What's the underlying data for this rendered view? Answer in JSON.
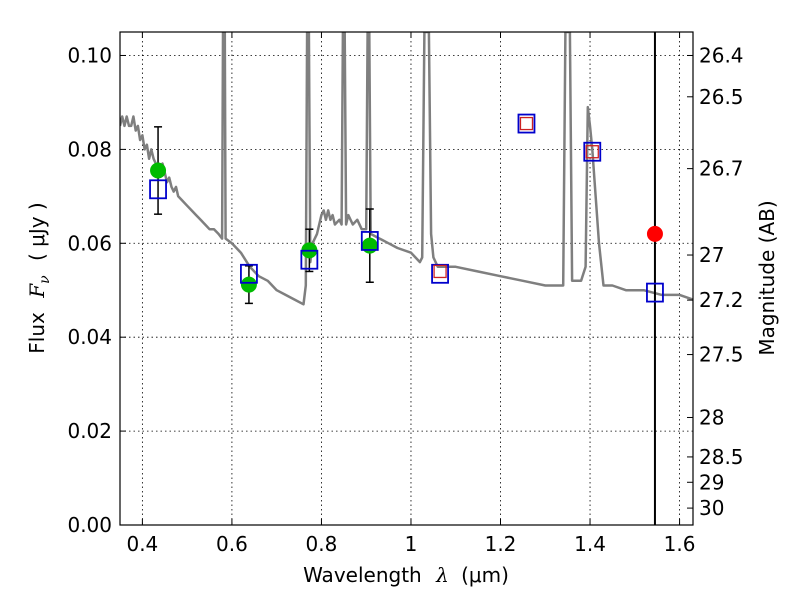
{
  "chart_data": {
    "type": "line",
    "xlabel": {
      "prefix": "Wavelength",
      "symbol": "λ",
      "units": "(μm)"
    },
    "ylabel": {
      "prefix": "Flux",
      "symbol": "F",
      "subscript": "ν",
      "units": "( μJy )"
    },
    "ylabel_right": "Magnitude (AB)",
    "xlim": [
      0.35,
      1.63
    ],
    "ylim": [
      0.0,
      0.105
    ],
    "grid": true,
    "x_ticks": [
      {
        "value": 0.4,
        "label": "0.4"
      },
      {
        "value": 0.6,
        "label": "0.6"
      },
      {
        "value": 0.8,
        "label": "0.8"
      },
      {
        "value": 1.0,
        "label": "1"
      },
      {
        "value": 1.2,
        "label": "1.2"
      },
      {
        "value": 1.4,
        "label": "1.4"
      },
      {
        "value": 1.6,
        "label": "1.6"
      }
    ],
    "y_ticks": [
      {
        "value": 0.0,
        "label": "0.00"
      },
      {
        "value": 0.02,
        "label": "0.02"
      },
      {
        "value": 0.04,
        "label": "0.04"
      },
      {
        "value": 0.06,
        "label": "0.06"
      },
      {
        "value": 0.08,
        "label": "0.08"
      },
      {
        "value": 0.1,
        "label": "0.10"
      }
    ],
    "mag_ticks": [
      {
        "label": "26.4",
        "flux": 0.1
      },
      {
        "label": "26.5",
        "flux": 0.0912
      },
      {
        "label": "26.7",
        "flux": 0.0759
      },
      {
        "label": "27",
        "flux": 0.0575
      },
      {
        "label": "27.2",
        "flux": 0.0479
      },
      {
        "label": "27.5",
        "flux": 0.0363
      },
      {
        "label": "28",
        "flux": 0.0229
      },
      {
        "label": "28.5",
        "flux": 0.0145
      },
      {
        "label": "29",
        "flux": 0.0091
      },
      {
        "label": "30",
        "flux": 0.0036
      }
    ],
    "vertical_line_x": 1.545,
    "model_spectrum": {
      "color": "#7f7f7f",
      "points": [
        [
          0.35,
          0.085
        ],
        [
          0.355,
          0.087
        ],
        [
          0.36,
          0.085
        ],
        [
          0.365,
          0.087
        ],
        [
          0.37,
          0.085
        ],
        [
          0.375,
          0.085
        ],
        [
          0.38,
          0.087
        ],
        [
          0.385,
          0.084
        ],
        [
          0.39,
          0.085
        ],
        [
          0.395,
          0.082
        ],
        [
          0.4,
          0.083
        ],
        [
          0.405,
          0.08
        ],
        [
          0.41,
          0.081
        ],
        [
          0.415,
          0.078
        ],
        [
          0.42,
          0.08
        ],
        [
          0.425,
          0.078
        ],
        [
          0.43,
          0.077
        ],
        [
          0.435,
          0.076
        ],
        [
          0.44,
          0.075
        ],
        [
          0.445,
          0.077
        ],
        [
          0.45,
          0.075
        ],
        [
          0.455,
          0.073
        ],
        [
          0.46,
          0.074
        ],
        [
          0.465,
          0.072
        ],
        [
          0.47,
          0.071
        ],
        [
          0.475,
          0.072
        ],
        [
          0.48,
          0.07
        ],
        [
          0.49,
          0.069
        ],
        [
          0.5,
          0.068
        ],
        [
          0.51,
          0.067
        ],
        [
          0.52,
          0.066
        ],
        [
          0.53,
          0.065
        ],
        [
          0.54,
          0.064
        ],
        [
          0.55,
          0.063
        ],
        [
          0.56,
          0.063
        ],
        [
          0.57,
          0.062
        ],
        [
          0.578,
          0.061
        ],
        [
          0.58,
          0.105
        ],
        [
          0.584,
          0.105
        ],
        [
          0.586,
          0.061
        ],
        [
          0.6,
          0.06
        ],
        [
          0.62,
          0.058
        ],
        [
          0.64,
          0.055
        ],
        [
          0.66,
          0.053
        ],
        [
          0.68,
          0.052
        ],
        [
          0.7,
          0.05
        ],
        [
          0.72,
          0.049
        ],
        [
          0.74,
          0.048
        ],
        [
          0.76,
          0.047
        ],
        [
          0.765,
          0.051
        ],
        [
          0.768,
          0.105
        ],
        [
          0.772,
          0.105
        ],
        [
          0.775,
          0.056
        ],
        [
          0.78,
          0.06
        ],
        [
          0.79,
          0.062
        ],
        [
          0.8,
          0.066
        ],
        [
          0.805,
          0.067
        ],
        [
          0.81,
          0.065
        ],
        [
          0.815,
          0.067
        ],
        [
          0.82,
          0.065
        ],
        [
          0.825,
          0.066
        ],
        [
          0.83,
          0.064
        ],
        [
          0.84,
          0.065
        ],
        [
          0.845,
          0.064
        ],
        [
          0.848,
          0.105
        ],
        [
          0.852,
          0.105
        ],
        [
          0.855,
          0.064
        ],
        [
          0.86,
          0.066
        ],
        [
          0.87,
          0.064
        ],
        [
          0.88,
          0.065
        ],
        [
          0.89,
          0.063
        ],
        [
          0.9,
          0.063
        ],
        [
          0.903,
          0.105
        ],
        [
          0.907,
          0.105
        ],
        [
          0.91,
          0.062
        ],
        [
          0.93,
          0.061
        ],
        [
          0.95,
          0.06
        ],
        [
          0.97,
          0.059
        ],
        [
          1.0,
          0.058
        ],
        [
          1.02,
          0.056
        ],
        [
          1.025,
          0.057
        ],
        [
          1.03,
          0.105
        ],
        [
          1.04,
          0.105
        ],
        [
          1.045,
          0.062
        ],
        [
          1.05,
          0.057
        ],
        [
          1.06,
          0.055
        ],
        [
          1.08,
          0.055
        ],
        [
          1.1,
          0.055
        ],
        [
          1.15,
          0.054
        ],
        [
          1.2,
          0.053
        ],
        [
          1.25,
          0.052
        ],
        [
          1.3,
          0.051
        ],
        [
          1.34,
          0.051
        ],
        [
          1.345,
          0.105
        ],
        [
          1.355,
          0.105
        ],
        [
          1.36,
          0.052
        ],
        [
          1.38,
          0.052
        ],
        [
          1.39,
          0.055
        ],
        [
          1.395,
          0.089
        ],
        [
          1.4,
          0.085
        ],
        [
          1.405,
          0.08
        ],
        [
          1.42,
          0.06
        ],
        [
          1.43,
          0.051
        ],
        [
          1.45,
          0.051
        ],
        [
          1.48,
          0.05
        ],
        [
          1.52,
          0.05
        ],
        [
          1.56,
          0.049
        ],
        [
          1.6,
          0.049
        ],
        [
          1.63,
          0.048
        ]
      ]
    },
    "model_photometry": {
      "color": "#0000cc",
      "points": [
        [
          0.435,
          0.0715
        ],
        [
          0.638,
          0.0535
        ],
        [
          0.773,
          0.0565
        ],
        [
          0.908,
          0.0605
        ],
        [
          1.065,
          0.0535
        ],
        [
          1.258,
          0.0855
        ],
        [
          1.405,
          0.0795
        ],
        [
          1.545,
          0.0495
        ]
      ]
    },
    "observed_flux": {
      "color": "#00bb00",
      "points": [
        {
          "x": 0.435,
          "y": 0.0755,
          "yerr": 0.0093
        },
        {
          "x": 0.638,
          "y": 0.0512,
          "yerr": 0.004
        },
        {
          "x": 0.773,
          "y": 0.0585,
          "yerr": 0.0045
        },
        {
          "x": 0.908,
          "y": 0.0595,
          "yerr": 0.0078
        }
      ]
    },
    "upper_limit_markers": {
      "color": "#cc2222",
      "points": [
        [
          1.065,
          0.054
        ],
        [
          1.258,
          0.0855
        ],
        [
          1.405,
          0.0795
        ]
      ]
    },
    "red_point": {
      "color": "#ff0000",
      "x": 1.545,
      "y": 0.062
    }
  }
}
